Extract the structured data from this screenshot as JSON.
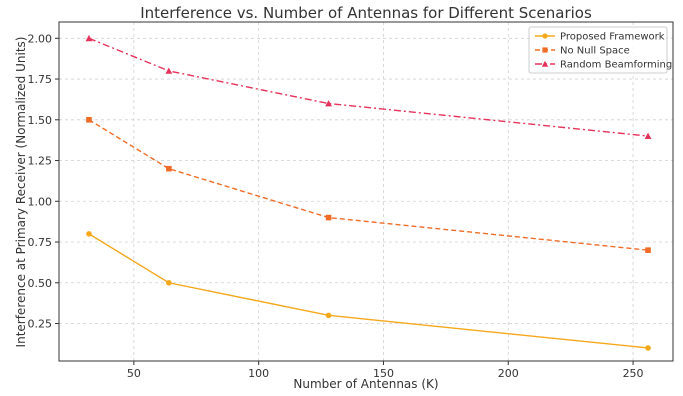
{
  "chart_data": {
    "type": "line",
    "title": "Interference vs. Number of Antennas for Different Scenarios",
    "xlabel": "Number of Antennas (K)",
    "ylabel": "Interference at Primary Receiver (Normalized Units)",
    "xlim": [
      20,
      266
    ],
    "ylim": [
      0.02,
      2.1
    ],
    "xticks": [
      50,
      100,
      150,
      200,
      250
    ],
    "yticks": [
      0.25,
      0.5,
      0.75,
      1.0,
      1.25,
      1.5,
      1.75,
      2.0
    ],
    "grid": true,
    "legend_position": "top-right",
    "x": [
      32,
      64,
      128,
      256
    ],
    "series": [
      {
        "name": "Proposed Framework",
        "values": [
          0.8,
          0.5,
          0.3,
          0.1
        ],
        "color": "#f5a81c",
        "marker": "circle",
        "dash": "solid"
      },
      {
        "name": "No Null Space",
        "values": [
          1.5,
          1.2,
          0.9,
          0.7
        ],
        "color": "#f06b25",
        "marker": "square",
        "dash": "dashed"
      },
      {
        "name": "Random Beamforming",
        "values": [
          2.0,
          1.8,
          1.6,
          1.4
        ],
        "color": "#e6325a",
        "marker": "triangle",
        "dash": "dashdot"
      }
    ]
  }
}
